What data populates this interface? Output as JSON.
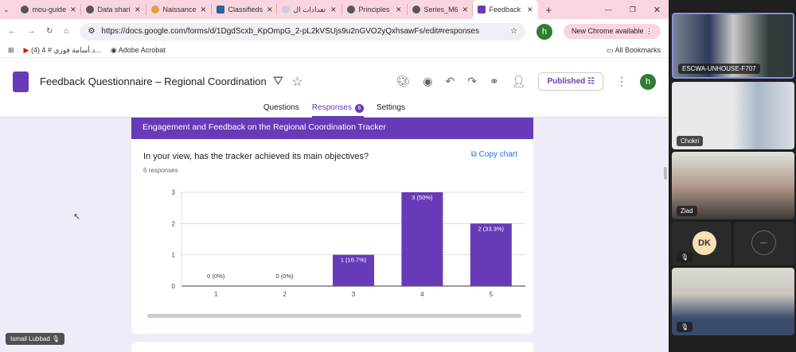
{
  "browser": {
    "tabs": [
      {
        "label": "mou-guide"
      },
      {
        "label": "Data shari"
      },
      {
        "label": "Naissance"
      },
      {
        "label": "Classifieds"
      },
      {
        "label": "تعدادات ال"
      },
      {
        "label": "Principles"
      },
      {
        "label": "Series_M6"
      },
      {
        "label": "Feedback",
        "active": true
      }
    ],
    "url": "https://docs.google.com/forms/d/1DgdScxb_KpOmpG_2-pL2kVSUjs9u2nGVO2yQxhsawFs/edit#responses",
    "new_chrome": "New Chrome available",
    "profile": "h",
    "bookmarks": [
      {
        "label": "(4) د.أسامة فوزي # 4..."
      },
      {
        "label": "Adobe Acrobat"
      }
    ],
    "all_bookmarks": "All Bookmarks"
  },
  "form": {
    "title": "Feedback Questionnaire – Regional Coordination",
    "published_label": "Published",
    "avatar": "h",
    "tabs": [
      {
        "label": "Questions"
      },
      {
        "label": "Responses",
        "badge": "6",
        "active": true
      },
      {
        "label": "Settings"
      }
    ],
    "section_title": "Engagement and Feedback on the Regional Coordination Tracker",
    "question": "In your view, has the tracker achieved its main objectives?",
    "responses": "6 responses",
    "copy_chart": "Copy chart",
    "accent": "#673ab7"
  },
  "chart_data": {
    "type": "bar",
    "categories": [
      "1",
      "2",
      "3",
      "4",
      "5"
    ],
    "values": [
      0,
      0,
      1,
      3,
      2
    ],
    "data_labels": [
      "0 (0%)",
      "0 (0%)",
      "1 (16.7%)",
      "3 (50%)",
      "2 (33.3%)"
    ],
    "yticks": [
      "0",
      "1",
      "2",
      "3"
    ],
    "ylim": [
      0,
      3
    ],
    "grid": true,
    "color": "#673ab7"
  },
  "presenter_label": "Ismail Lubbad",
  "participants": [
    {
      "name": "ESCWA-UNHOUSE-F707"
    },
    {
      "name": "Chokri"
    },
    {
      "name": "Ziad"
    },
    {
      "initials": "DK"
    },
    {
      "name": ""
    },
    {
      "name": ""
    }
  ]
}
